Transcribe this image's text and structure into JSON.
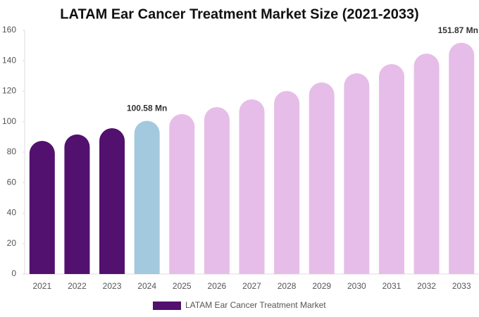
{
  "chart_data": {
    "type": "bar",
    "title": "LATAM Ear Cancer Treatment Market Size (2021-2033)",
    "categories": [
      "2021",
      "2022",
      "2023",
      "2024",
      "2025",
      "2026",
      "2027",
      "2028",
      "2029",
      "2030",
      "2031",
      "2032",
      "2033"
    ],
    "series": [
      {
        "name": "LATAM Ear Cancer Treatment Market",
        "color": "#52106f",
        "colors": [
          "#52106f",
          "#52106f",
          "#52106f",
          "#a3c9de",
          "#e6bde8",
          "#e6bde8",
          "#e6bde8",
          "#e6bde8",
          "#e6bde8",
          "#e6bde8",
          "#e6bde8",
          "#e6bde8",
          "#e6bde8"
        ],
        "values": [
          87.4,
          91.6,
          95.7,
          100.58,
          105,
          109.6,
          114.7,
          120.2,
          125.8,
          131.8,
          137.8,
          144.7,
          151.87
        ],
        "value_labels": [
          null,
          null,
          null,
          "100.58 Mn",
          null,
          null,
          null,
          null,
          null,
          null,
          null,
          null,
          "151.87 Mn"
        ]
      }
    ],
    "ylim": [
      0,
      160
    ],
    "yticks": [
      0,
      20,
      40,
      60,
      80,
      100,
      120,
      140,
      160
    ]
  }
}
